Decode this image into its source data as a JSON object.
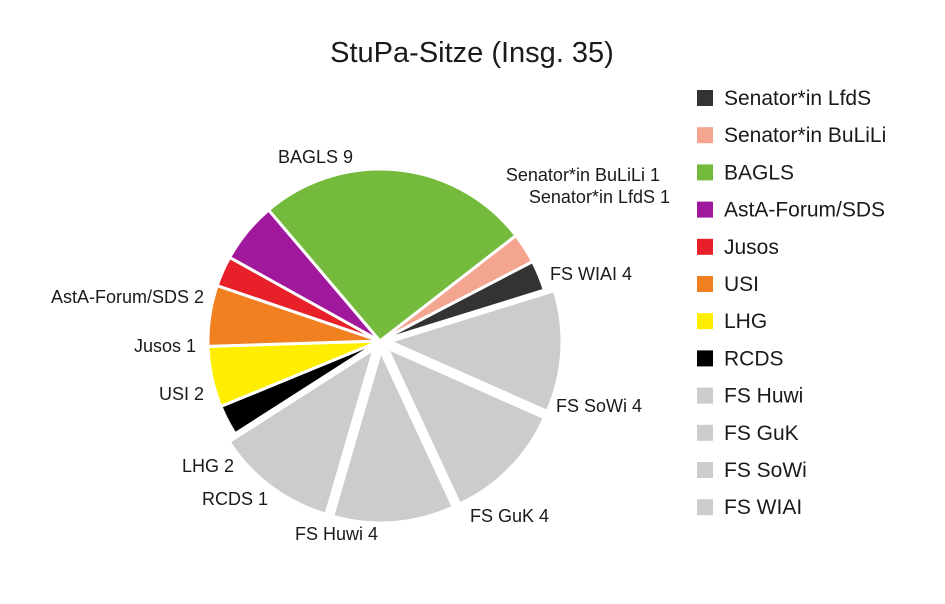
{
  "chart_data": {
    "type": "pie",
    "title": "StuPa-Sitze (Insg. 35)",
    "slices": [
      {
        "name": "Senator*in LfdS",
        "value": 1,
        "color": "#333333",
        "label": "Senator*in LfdS 1"
      },
      {
        "name": "FS WIAI",
        "value": 4,
        "color": "#cccccc",
        "label": "FS WIAI 4"
      },
      {
        "name": "FS SoWi",
        "value": 4,
        "color": "#cccccc",
        "label": "FS SoWi 4"
      },
      {
        "name": "FS GuK",
        "value": 4,
        "color": "#cccccc",
        "label": "FS GuK 4"
      },
      {
        "name": "FS Huwi",
        "value": 4,
        "color": "#cccccc",
        "label": "FS Huwi 4"
      },
      {
        "name": "RCDS",
        "value": 1,
        "color": "#000000",
        "label": "RCDS 1"
      },
      {
        "name": "LHG",
        "value": 2,
        "color": "#ffee00",
        "label": "LHG 2"
      },
      {
        "name": "USI",
        "value": 2,
        "color": "#f08020",
        "label": "USI 2"
      },
      {
        "name": "Jusos",
        "value": 1,
        "color": "#e8202a",
        "label": "Jusos 1"
      },
      {
        "name": "AstA-Forum/SDS",
        "value": 2,
        "color": "#a0189c",
        "label": "AstA-Forum/SDS 2"
      },
      {
        "name": "BAGLS",
        "value": 9,
        "color": "#74bb3d",
        "label": "BAGLS 9"
      },
      {
        "name": "Senator*in BuLiLi",
        "value": 1,
        "color": "#f4a590",
        "label": "Senator*in BuLiLi 1"
      }
    ],
    "legend": {
      "placement": "right",
      "entries": [
        {
          "name": "Senator*in LfdS",
          "color": "#333333"
        },
        {
          "name": "Senator*in BuLiLi",
          "color": "#f4a590"
        },
        {
          "name": "BAGLS",
          "color": "#74bb3d"
        },
        {
          "name": "AstA-Forum/SDS",
          "color": "#a0189c"
        },
        {
          "name": "Jusos",
          "color": "#e8202a"
        },
        {
          "name": "USI",
          "color": "#f08020"
        },
        {
          "name": "LHG",
          "color": "#ffee00"
        },
        {
          "name": "RCDS",
          "color": "#000000"
        },
        {
          "name": "FS Huwi",
          "color": "#cccccc"
        },
        {
          "name": "FS GuK",
          "color": "#cccccc"
        },
        {
          "name": "FS SoWi",
          "color": "#cccccc"
        },
        {
          "name": "FS WIAI",
          "color": "#cccccc"
        }
      ]
    }
  }
}
